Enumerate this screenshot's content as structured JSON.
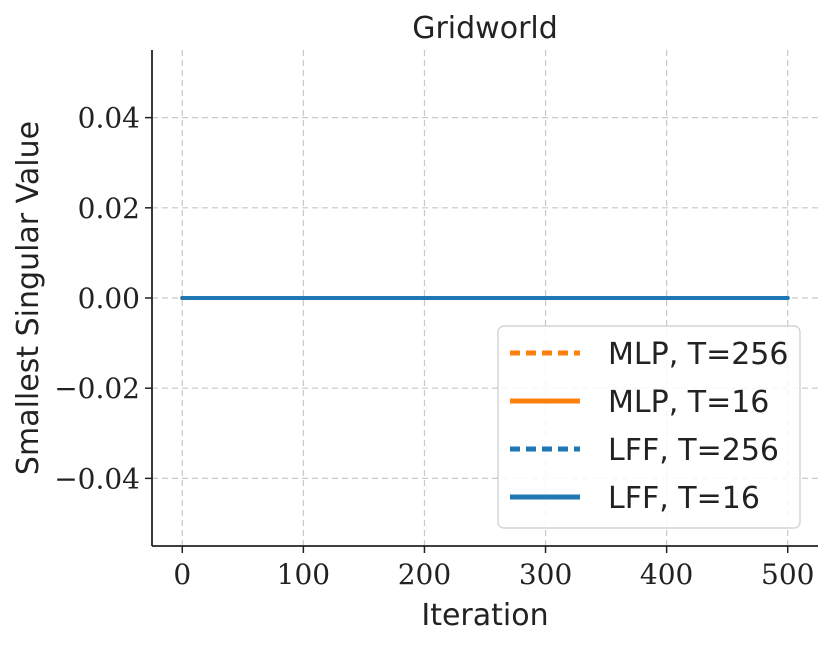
{
  "chart_data": {
    "type": "line",
    "title": "Gridworld",
    "xlabel": "Iteration",
    "ylabel": "Smallest Singular Value",
    "xlim": [
      -25,
      525
    ],
    "ylim": [
      -0.055,
      0.055
    ],
    "xticks": [
      0,
      100,
      200,
      300,
      400,
      500
    ],
    "xtick_labels": [
      "0",
      "100",
      "200",
      "300",
      "400",
      "500"
    ],
    "yticks": [
      -0.04,
      -0.02,
      0.0,
      0.02,
      0.04
    ],
    "ytick_labels": [
      "−0.04",
      "−0.02",
      "0.00",
      "0.02",
      "0.04"
    ],
    "grid": true,
    "legend_position": "lower-right",
    "series": [
      {
        "name": "MLP, T=256",
        "color": "#ff7f0e",
        "style": "dashed",
        "x": [
          0,
          500
        ],
        "y": [
          0,
          0
        ]
      },
      {
        "name": "MLP, T=16",
        "color": "#ff7f0e",
        "style": "solid",
        "x": [
          0,
          500
        ],
        "y": [
          0,
          0
        ]
      },
      {
        "name": "LFF, T=256",
        "color": "#1f77b4",
        "style": "dashed",
        "x": [
          0,
          500
        ],
        "y": [
          0,
          0
        ]
      },
      {
        "name": "LFF, T=16",
        "color": "#1f77b4",
        "style": "solid",
        "x": [
          0,
          500
        ],
        "y": [
          0,
          0
        ]
      }
    ]
  }
}
